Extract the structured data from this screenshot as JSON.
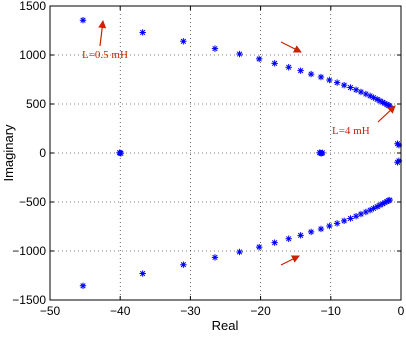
{
  "chart_data": {
    "type": "scatter",
    "xlabel": "Real",
    "ylabel": "Imaginary",
    "xlim": [
      -50,
      0
    ],
    "ylim": [
      -1500,
      1500
    ],
    "xticks": [
      -50,
      -40,
      -30,
      -20,
      -10,
      0
    ],
    "yticks": [
      -1500,
      -1000,
      -500,
      0,
      500,
      1000,
      1500
    ],
    "xtick_labels": [
      "−50",
      "−40",
      "−30",
      "−20",
      "−10",
      "0"
    ],
    "ytick_labels": [
      "−1500",
      "−1000",
      "−500",
      "0",
      "500",
      "1000",
      "1500"
    ],
    "grid": true,
    "marker": "*",
    "colors": {
      "points": "#0000ff",
      "annotation": "#cc2200"
    },
    "series": [
      {
        "points": [
          [
            -45.3,
            1355
          ],
          [
            -36.8,
            1230
          ],
          [
            -31,
            1140
          ],
          [
            -26.5,
            1065
          ],
          [
            -23,
            1010
          ],
          [
            -20.2,
            960
          ],
          [
            -18,
            915
          ],
          [
            -16,
            875
          ],
          [
            -14.3,
            840
          ],
          [
            -12.8,
            805
          ],
          [
            -11.4,
            775
          ],
          [
            -10.2,
            745
          ],
          [
            -9.1,
            718
          ],
          [
            -8.1,
            692
          ],
          [
            -7.2,
            668
          ],
          [
            -6.4,
            645
          ],
          [
            -5.7,
            623
          ],
          [
            -5,
            602
          ],
          [
            -4.4,
            583
          ],
          [
            -3.9,
            565
          ],
          [
            -3.4,
            548
          ],
          [
            -3,
            532
          ],
          [
            -2.6,
            518
          ],
          [
            -2.3,
            505
          ],
          [
            -2,
            494
          ],
          [
            -1.8,
            486
          ],
          [
            -1.6,
            480
          ],
          [
            -45.3,
            -1355
          ],
          [
            -36.8,
            -1230
          ],
          [
            -31,
            -1140
          ],
          [
            -26.5,
            -1065
          ],
          [
            -23,
            -1010
          ],
          [
            -20.2,
            -960
          ],
          [
            -18,
            -915
          ],
          [
            -16,
            -875
          ],
          [
            -14.3,
            -840
          ],
          [
            -12.8,
            -805
          ],
          [
            -11.4,
            -775
          ],
          [
            -10.2,
            -745
          ],
          [
            -9.1,
            -718
          ],
          [
            -8.1,
            -692
          ],
          [
            -7.2,
            -668
          ],
          [
            -6.4,
            -645
          ],
          [
            -5.7,
            -623
          ],
          [
            -5,
            -602
          ],
          [
            -4.4,
            -583
          ],
          [
            -3.9,
            -565
          ],
          [
            -3.4,
            -548
          ],
          [
            -3,
            -532
          ],
          [
            -2.6,
            -518
          ],
          [
            -2.3,
            -505
          ],
          [
            -2,
            -494
          ],
          [
            -1.8,
            -486
          ],
          [
            -1.6,
            -480
          ],
          [
            -40.1,
            3
          ],
          [
            -39.9,
            -3
          ],
          [
            -40,
            0
          ],
          [
            -11.6,
            3
          ],
          [
            -11.3,
            -3
          ],
          [
            -11.45,
            0
          ],
          [
            -11.2,
            2
          ],
          [
            -0.5,
            95
          ],
          [
            -0.3,
            80
          ],
          [
            -0.5,
            -95
          ],
          [
            -0.3,
            -80
          ]
        ]
      }
    ],
    "annotations": [
      {
        "text": "L=0.5 mH"
      },
      {
        "text": "L=4 mH"
      }
    ]
  }
}
